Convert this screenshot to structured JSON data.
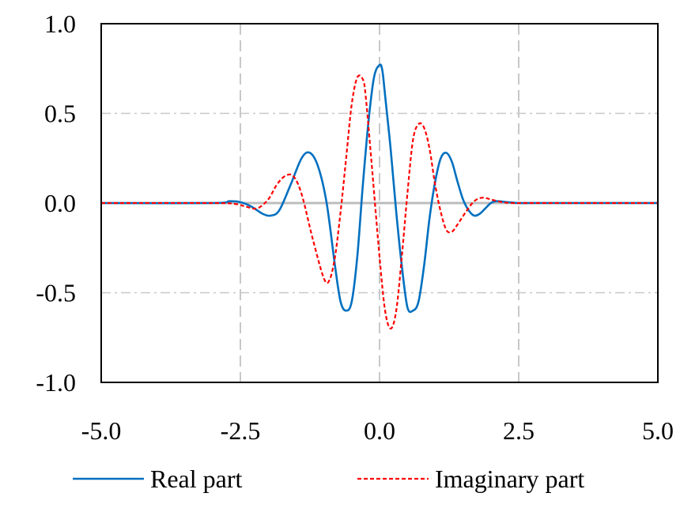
{
  "chart_data": {
    "type": "line",
    "title": "",
    "xlabel": "",
    "ylabel": "",
    "xlim": [
      -5.0,
      5.0
    ],
    "ylim": [
      -1.0,
      1.0
    ],
    "x_ticks": [
      -5.0,
      -2.5,
      0.0,
      2.5,
      5.0
    ],
    "y_ticks": [
      -1.0,
      -0.5,
      0.0,
      0.5,
      1.0
    ],
    "x_tick_labels": [
      "-5.0",
      "-2.5",
      "0.0",
      "2.5",
      "5.0"
    ],
    "y_tick_labels": [
      "-1.0",
      "-0.5",
      "0.0",
      "0.5",
      "1.0"
    ],
    "grid": true,
    "legend_position": "bottom",
    "series": [
      {
        "name": "Real part",
        "color": "#0070C0",
        "line_style": "solid",
        "x": [
          -5.0,
          -3.0,
          -2.7,
          -2.5,
          -2.3,
          -2.1,
          -1.95,
          -1.8,
          -1.6,
          -1.4,
          -1.25,
          -1.1,
          -0.95,
          -0.8,
          -0.7,
          -0.6,
          -0.5,
          -0.4,
          -0.3,
          -0.2,
          -0.1,
          0.0,
          0.05,
          0.1,
          0.2,
          0.3,
          0.4,
          0.5,
          0.6,
          0.7,
          0.8,
          0.9,
          1.0,
          1.1,
          1.2,
          1.3,
          1.4,
          1.5,
          1.6,
          1.7,
          1.8,
          1.9,
          2.0,
          2.1,
          2.3,
          2.5,
          2.7,
          3.0,
          5.0
        ],
        "values": [
          0.0,
          0.0,
          0.01,
          0.005,
          -0.02,
          -0.06,
          -0.07,
          -0.04,
          0.1,
          0.25,
          0.28,
          0.2,
          0.0,
          -0.35,
          -0.55,
          -0.6,
          -0.55,
          -0.3,
          0.1,
          0.45,
          0.7,
          0.77,
          0.74,
          0.6,
          0.3,
          -0.05,
          -0.35,
          -0.58,
          -0.6,
          -0.55,
          -0.35,
          -0.08,
          0.12,
          0.25,
          0.28,
          0.23,
          0.12,
          0.02,
          -0.04,
          -0.07,
          -0.06,
          -0.03,
          0.0,
          0.01,
          0.005,
          0.0,
          0.0,
          0.0,
          0.0
        ]
      },
      {
        "name": "Imaginary part",
        "color": "#FF0000",
        "line_style": "dashed",
        "x": [
          -5.0,
          -3.0,
          -2.6,
          -2.4,
          -2.2,
          -2.0,
          -1.85,
          -1.7,
          -1.55,
          -1.4,
          -1.2,
          -1.0,
          -0.9,
          -0.8,
          -0.7,
          -0.6,
          -0.5,
          -0.4,
          -0.3,
          -0.25,
          -0.15,
          0.0,
          0.1,
          0.2,
          0.3,
          0.4,
          0.5,
          0.6,
          0.7,
          0.8,
          0.9,
          1.0,
          1.1,
          1.2,
          1.3,
          1.4,
          1.55,
          1.7,
          1.85,
          2.0,
          2.2,
          2.4,
          2.6,
          3.0,
          5.0
        ],
        "values": [
          0.0,
          0.0,
          -0.005,
          -0.02,
          -0.03,
          0.02,
          0.1,
          0.15,
          0.15,
          0.05,
          -0.2,
          -0.42,
          -0.43,
          -0.3,
          -0.05,
          0.25,
          0.55,
          0.7,
          0.69,
          0.6,
          0.25,
          -0.3,
          -0.6,
          -0.7,
          -0.6,
          -0.3,
          0.05,
          0.35,
          0.44,
          0.42,
          0.3,
          0.1,
          -0.05,
          -0.15,
          -0.16,
          -0.12,
          -0.05,
          0.01,
          0.03,
          0.02,
          0.005,
          0.0,
          0.0,
          0.0,
          0.0
        ]
      }
    ]
  }
}
